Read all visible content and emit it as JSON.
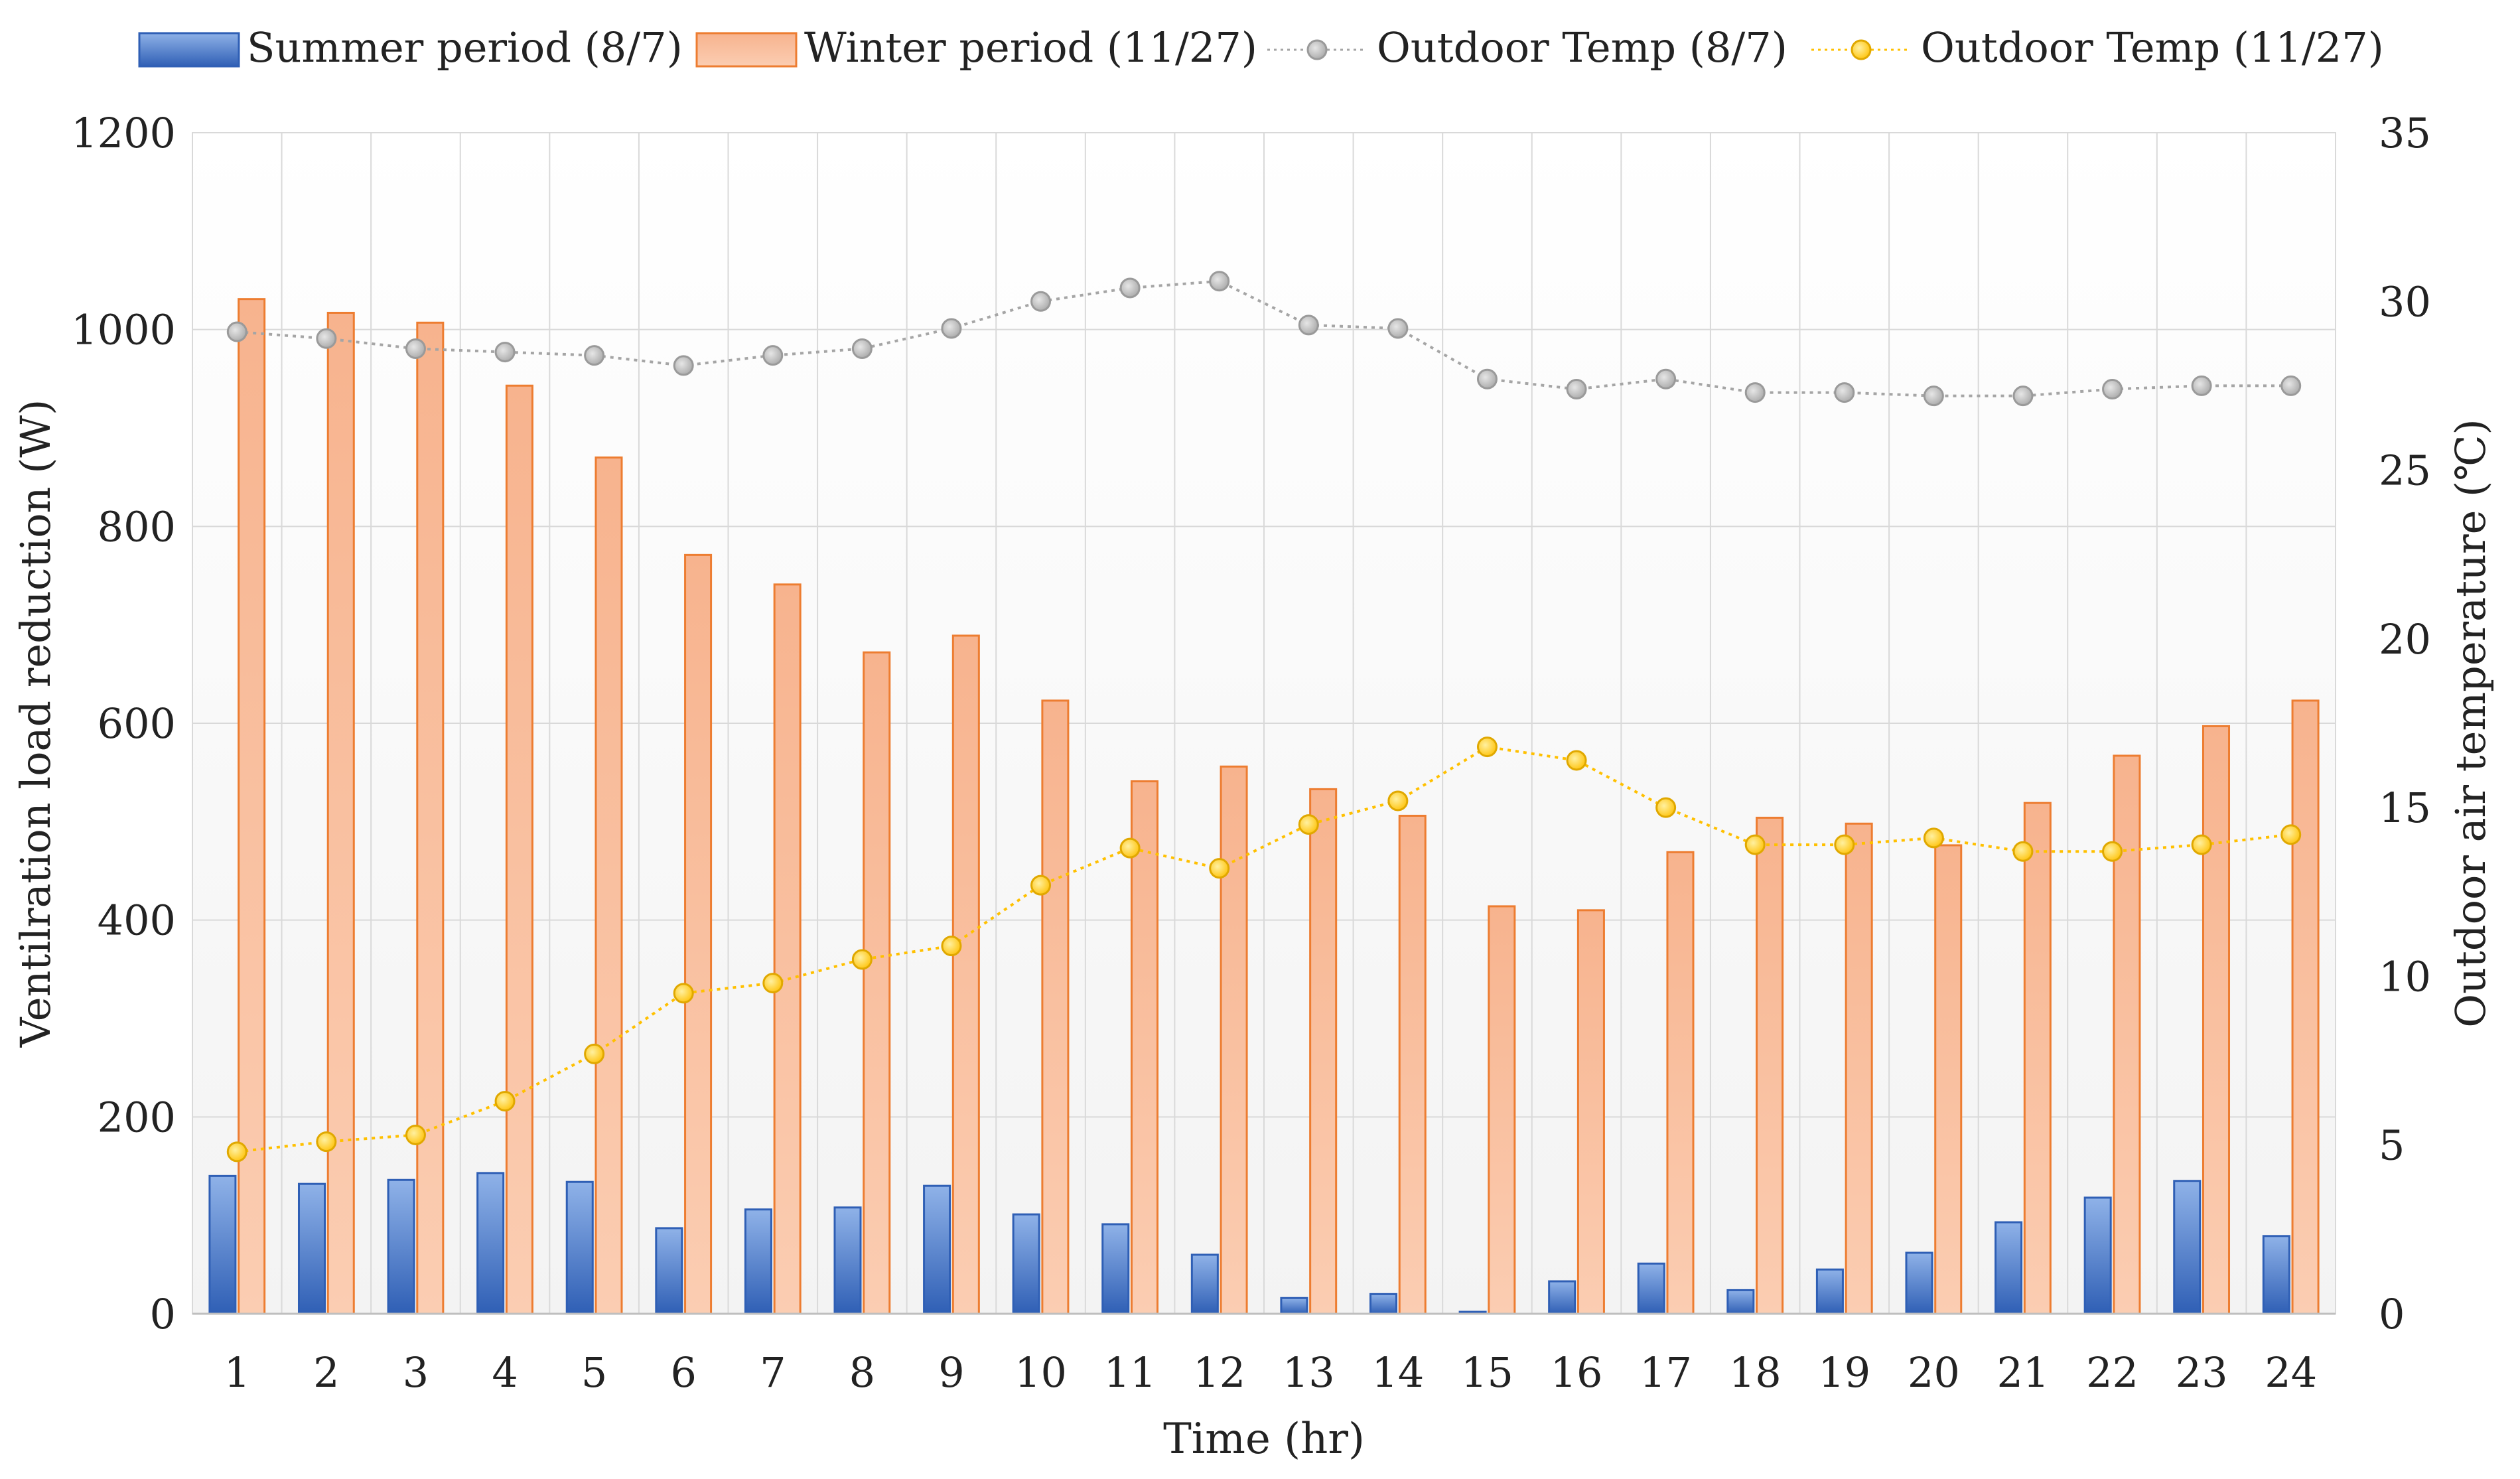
{
  "chart_data": {
    "type": "bar",
    "title": "",
    "xlabel": "Time (hr)",
    "ylabel": "Ventilration  load reduction (W)",
    "y2label": "Outdoor  air temperature (℃)",
    "ylim": [
      0,
      1200
    ],
    "y2lim": [
      0,
      35
    ],
    "yticks": [
      0,
      200,
      400,
      600,
      800,
      1000,
      1200
    ],
    "y2ticks": [
      0,
      5,
      10,
      15,
      20,
      25,
      30,
      35
    ],
    "grid": true,
    "legend_position": "top",
    "categories": [
      "1",
      "2",
      "3",
      "4",
      "5",
      "6",
      "7",
      "8",
      "9",
      "10",
      "11",
      "12",
      "13",
      "14",
      "15",
      "16",
      "17",
      "18",
      "19",
      "20",
      "21",
      "22",
      "23",
      "24"
    ],
    "series": [
      {
        "name": "Summer period (8/7)",
        "kind": "bar",
        "axis": "left",
        "color": "#4472c4",
        "values": [
          140,
          132,
          136,
          143,
          134,
          87,
          106,
          108,
          130,
          101,
          91,
          60,
          16,
          20,
          2,
          33,
          51,
          24,
          45,
          62,
          93,
          118,
          135,
          79
        ]
      },
      {
        "name": "Winter period (11/27)",
        "kind": "bar",
        "axis": "left",
        "color": "#ed7d31",
        "values": [
          1031,
          1017,
          1007,
          943,
          870,
          771,
          741,
          672,
          689,
          623,
          541,
          556,
          533,
          506,
          414,
          410,
          469,
          504,
          498,
          476,
          519,
          567,
          597,
          623
        ]
      },
      {
        "name": "Outdoor Temp (8/7)",
        "kind": "line",
        "axis": "right",
        "color": "#a5a5a5",
        "values": [
          29.1,
          28.9,
          28.6,
          28.5,
          28.4,
          28.1,
          28.4,
          28.6,
          29.2,
          30.0,
          30.4,
          30.6,
          29.3,
          29.2,
          27.7,
          27.4,
          27.7,
          27.3,
          27.3,
          27.2,
          27.2,
          27.4,
          27.5,
          27.5
        ]
      },
      {
        "name": "Outdoor Temp (11/27)",
        "kind": "line",
        "axis": "right",
        "color": "#ffc000",
        "values": [
          4.8,
          5.1,
          5.3,
          6.3,
          7.7,
          9.5,
          9.8,
          10.5,
          10.9,
          12.7,
          13.8,
          13.2,
          14.5,
          15.2,
          16.8,
          16.4,
          15.0,
          13.9,
          13.9,
          14.1,
          13.7,
          13.7,
          13.9,
          14.2
        ]
      }
    ]
  }
}
